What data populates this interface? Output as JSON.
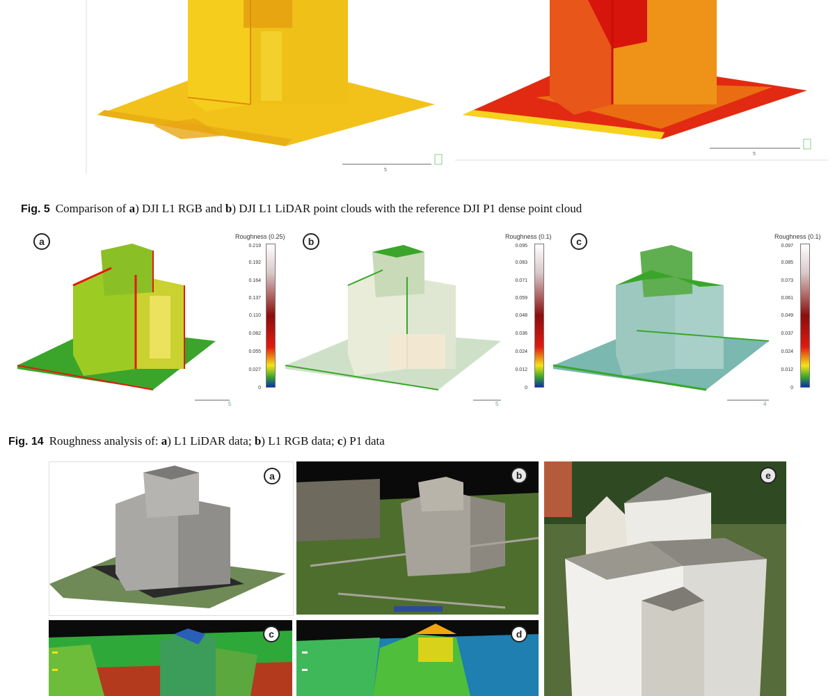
{
  "fig5": {
    "label": "Fig. 5",
    "caption_parts": [
      "Comparison of ",
      "a",
      ") DJI L1 RGB and ",
      "b",
      ") DJI L1 LiDAR point clouds with the reference DJI P1 dense point cloud"
    ],
    "scale_value_a": "5",
    "scale_value_b": "5"
  },
  "fig14": {
    "label": "Fig. 14",
    "caption_parts": [
      "Roughness analysis of: ",
      "a",
      ") L1 LiDAR data; ",
      "b",
      ") L1 RGB data; ",
      "c",
      ") P1 data"
    ],
    "panels": [
      {
        "letter": "a",
        "scale_title": "Roughness (0.25)",
        "ticks": [
          "0.219",
          "0.192",
          "0.164",
          "0.137",
          "0.110",
          "0.082",
          "0.055",
          "0.027",
          "0"
        ],
        "scale_value": "5"
      },
      {
        "letter": "b",
        "scale_title": "Roughness (0.1)",
        "ticks": [
          "0.095",
          "0.083",
          "0.071",
          "0.059",
          "0.048",
          "0.036",
          "0.024",
          "0.012",
          "0"
        ],
        "scale_value": "5"
      },
      {
        "letter": "c",
        "scale_title": "Roughness (0.1)",
        "ticks": [
          "0.097",
          "0.085",
          "0.073",
          "0.061",
          "0.049",
          "0.037",
          "0.024",
          "0.012",
          "0"
        ],
        "scale_value": "4"
      }
    ]
  },
  "fig_bottom": {
    "letters": [
      "a",
      "b",
      "e",
      "c",
      "d"
    ]
  },
  "colors": {
    "yellow": "#f2c21a",
    "orange": "#e9850e",
    "red": "#e21a10",
    "green": "#3aa52a",
    "teal": "#7ab8b0",
    "grass": "#4e6e2e",
    "stone": "#a7a39a"
  }
}
